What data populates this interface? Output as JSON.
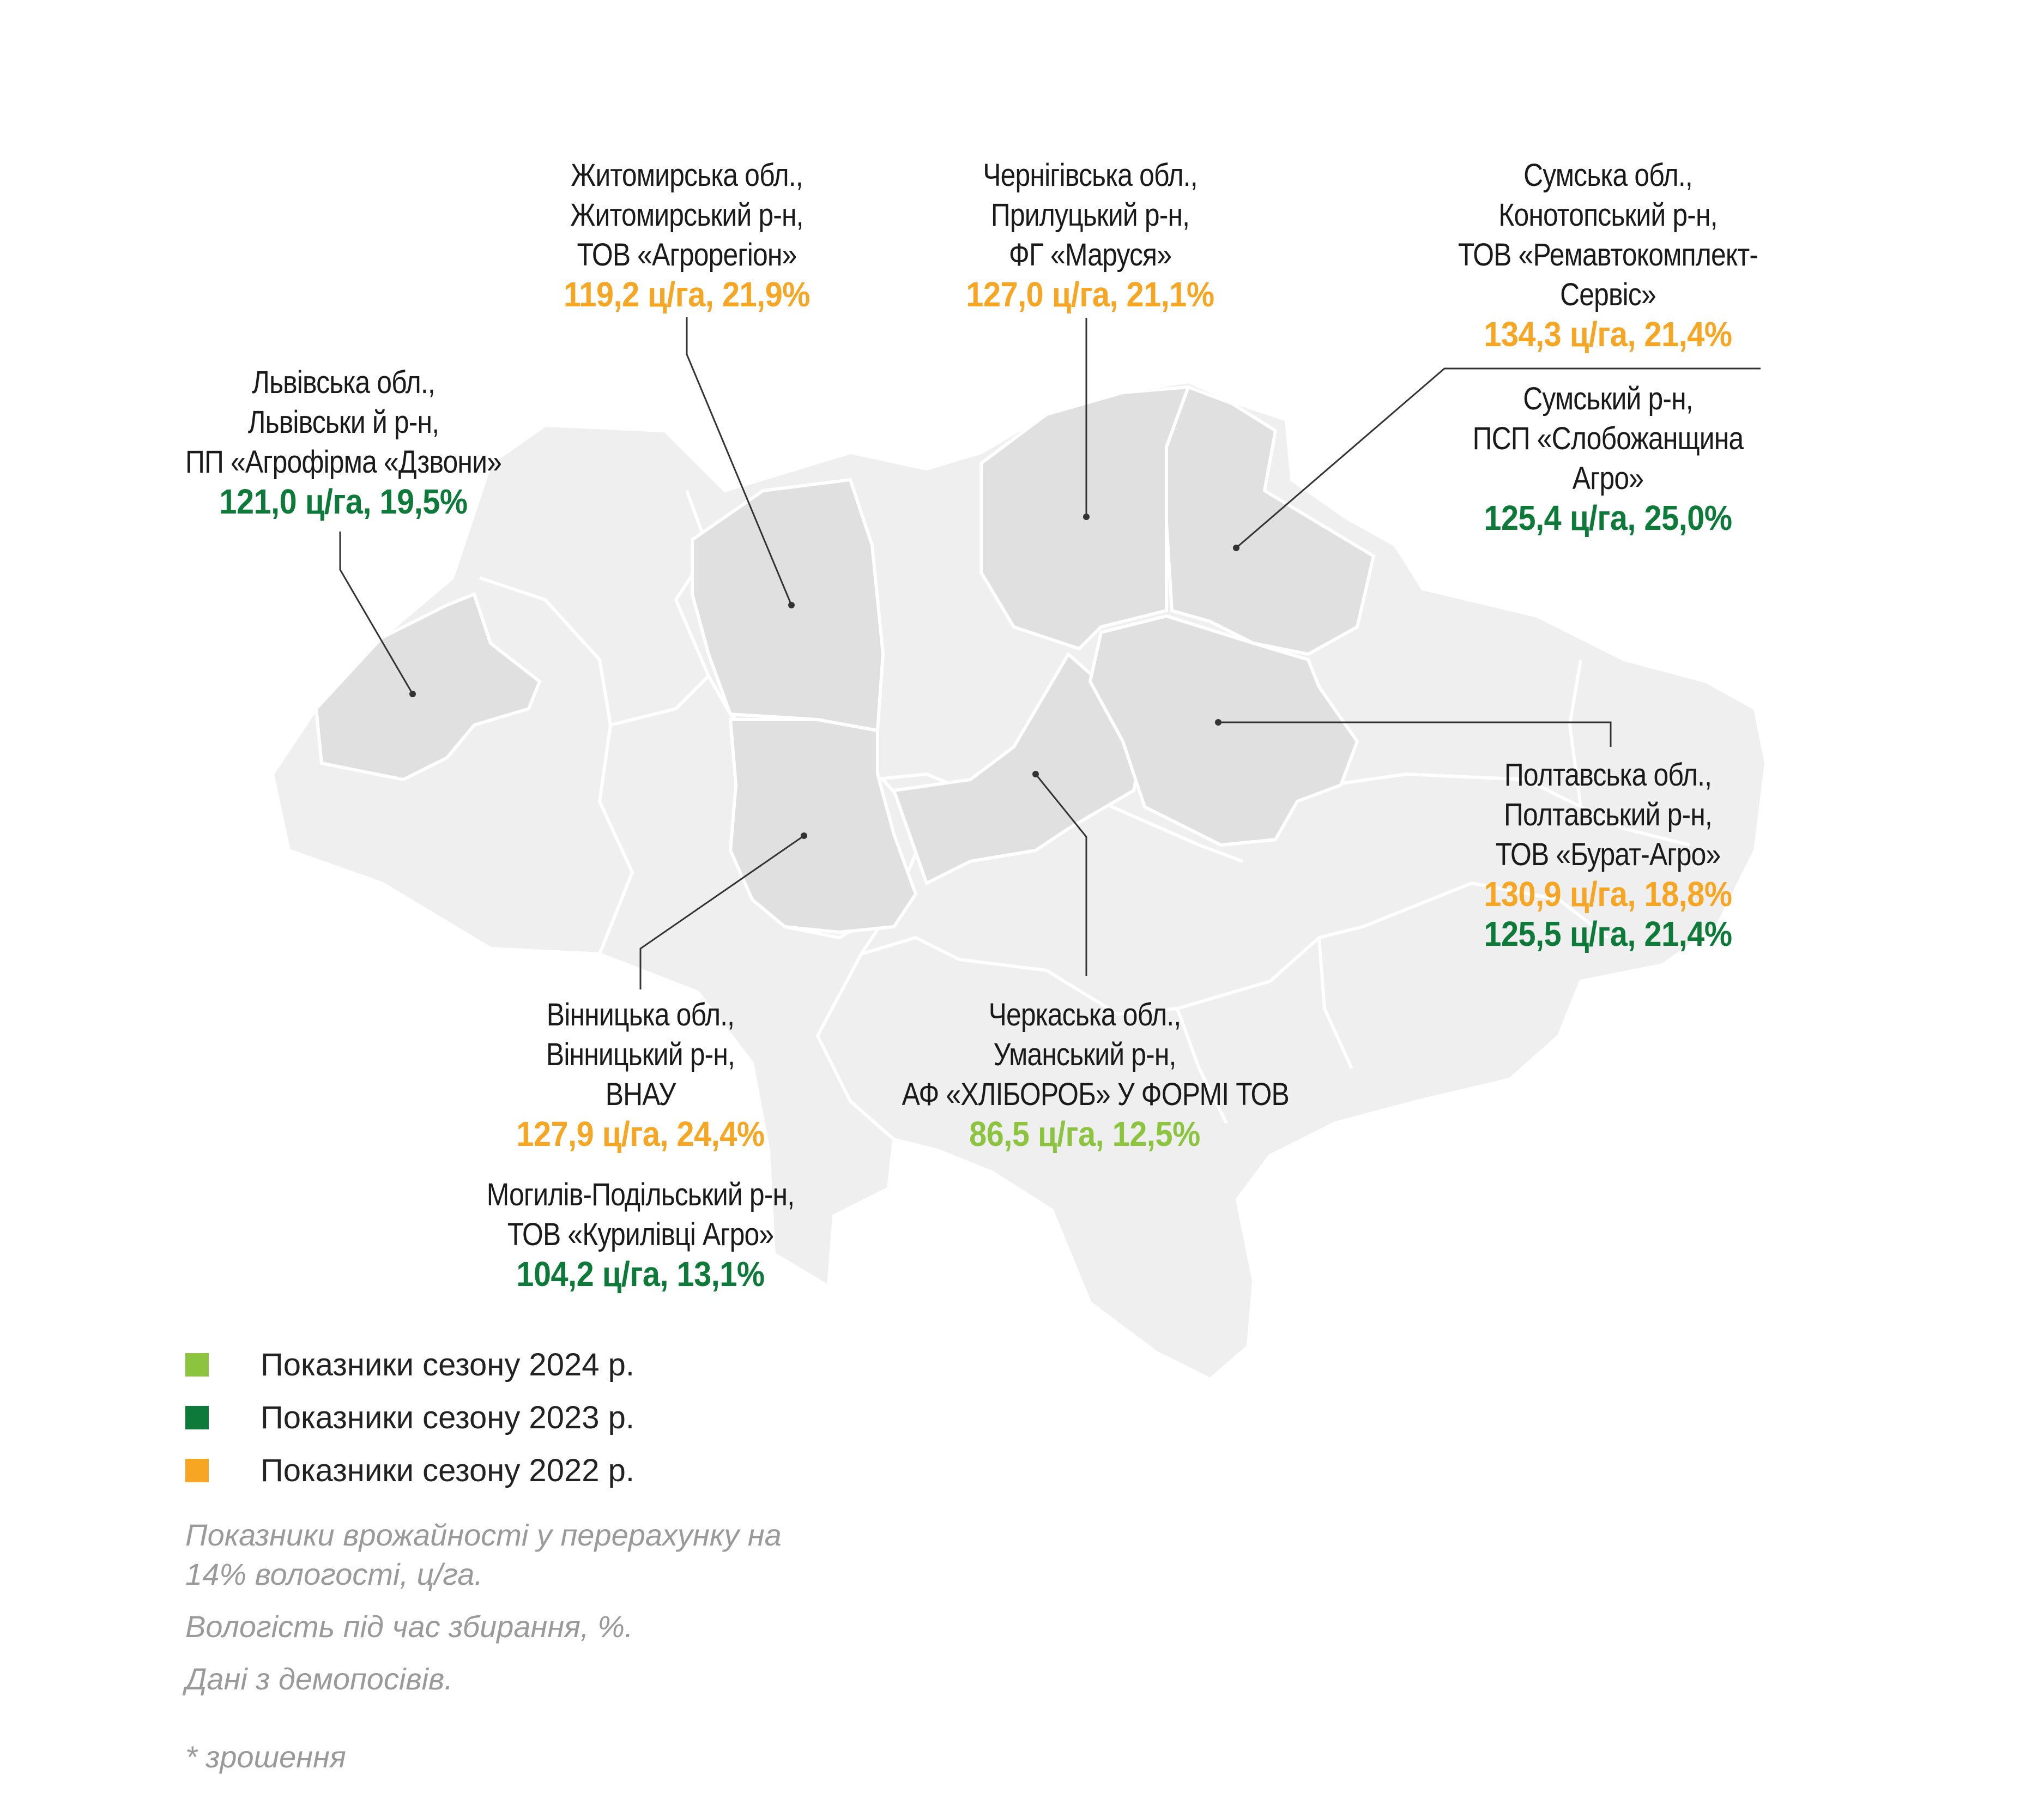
{
  "colors": {
    "season_2024": "#8cc43f",
    "season_2023": "#0e7a3a",
    "season_2022": "#f6a623",
    "map_background": "#efefef",
    "map_highlight": "#e0e0e0",
    "border": "#ffffff",
    "leader_line": "#333333"
  },
  "regions": [
    {
      "id": "zhytomyr",
      "lines": [
        "Житомирська обл.,",
        "Житомирський р-н,",
        "ТОВ «Агрорегіон»"
      ],
      "values": [
        {
          "text": "119,2 ц/га, 21,9%",
          "season": "2022"
        }
      ]
    },
    {
      "id": "chernihiv",
      "lines": [
        "Чернігівська обл.,",
        "Прилуцький р-н,",
        "ФГ «Маруся»"
      ],
      "values": [
        {
          "text": "127,0 ц/га, 21,1%",
          "season": "2022"
        }
      ]
    },
    {
      "id": "sumy_konotop",
      "lines": [
        "Сумська обл.,",
        "Конотопський р-н,",
        "ТОВ «Ремавтокомплект-",
        "Сервіс»"
      ],
      "values": [
        {
          "text": "134,3 ц/га, 21,4%",
          "season": "2022"
        }
      ]
    },
    {
      "id": "sumy_sumy",
      "lines": [
        "Сумський р-н,",
        "ПСП «Слобожанщина",
        "Агро»"
      ],
      "values": [
        {
          "text": "125,4 ц/га, 25,0%",
          "season": "2023"
        }
      ]
    },
    {
      "id": "lviv",
      "lines": [
        "Львівська обл.,",
        "Львівськи й р-н,",
        "ПП «Агрофірма «Дзвони»"
      ],
      "values": [
        {
          "text": "121,0 ц/га, 19,5%",
          "season": "2023"
        }
      ]
    },
    {
      "id": "poltava",
      "lines": [
        "Полтавська обл.,",
        "Полтавський р-н,",
        "ТОВ «Бурат-Агро»"
      ],
      "values": [
        {
          "text": "130,9 ц/га, 18,8%",
          "season": "2022"
        },
        {
          "text": "125,5 ц/га, 21,4%",
          "season": "2023"
        }
      ]
    },
    {
      "id": "vinnytsia",
      "lines": [
        "Вінницька обл.,",
        "Вінницький р-н,",
        "ВНАУ"
      ],
      "values": [
        {
          "text": "127,9 ц/га, 24,4%",
          "season": "2022"
        }
      ]
    },
    {
      "id": "mohyliv",
      "lines": [
        "Могилів-Подільський р-н,",
        "ТОВ «Курилівці Агро»"
      ],
      "values": [
        {
          "text": "104,2 ц/га, 13,1%",
          "season": "2023"
        }
      ]
    },
    {
      "id": "cherkasy",
      "lines": [
        "Черкаська обл.,",
        "Уманський р-н,",
        "АФ «ХЛІБОРОБ» У ФОРМІ ТОВ"
      ],
      "values": [
        {
          "text": "86,5 ц/га, 12,5%",
          "season": "2024"
        }
      ]
    }
  ],
  "legend": [
    {
      "season": "2024",
      "label": "Показники сезону 2024 р."
    },
    {
      "season": "2023",
      "label": "Показники сезону 2023 р."
    },
    {
      "season": "2022",
      "label": "Показники сезону 2022 р."
    }
  ],
  "notes": [
    "Показники врожайності у перерахунку на 14% вологості, ц/га.",
    "Вологість під час збирання, %.",
    "Дані з демопосівів."
  ],
  "footnote": "* зрошення"
}
